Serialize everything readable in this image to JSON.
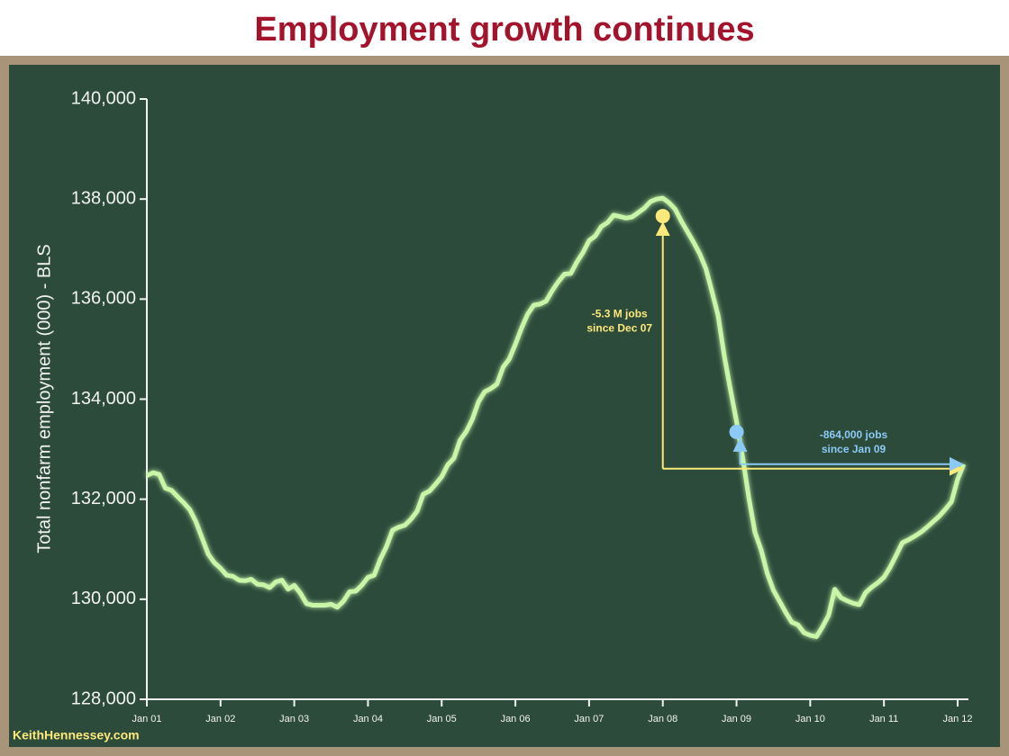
{
  "chart_data": {
    "type": "line",
    "title": "Employment growth continues",
    "y_label": "Total nonfarm employment (000) - BLS",
    "watermark": "KeithHennessey.com",
    "x": [
      "2001-01",
      "2001-02",
      "2001-03",
      "2001-04",
      "2001-05",
      "2001-06",
      "2001-07",
      "2001-08",
      "2001-09",
      "2001-10",
      "2001-11",
      "2001-12",
      "2002-01",
      "2002-02",
      "2002-03",
      "2002-04",
      "2002-05",
      "2002-06",
      "2002-07",
      "2002-08",
      "2002-09",
      "2002-10",
      "2002-11",
      "2002-12",
      "2003-01",
      "2003-02",
      "2003-03",
      "2003-04",
      "2003-05",
      "2003-06",
      "2003-07",
      "2003-08",
      "2003-09",
      "2003-10",
      "2003-11",
      "2003-12",
      "2004-01",
      "2004-02",
      "2004-03",
      "2004-04",
      "2004-05",
      "2004-06",
      "2004-07",
      "2004-08",
      "2004-09",
      "2004-10",
      "2004-11",
      "2004-12",
      "2005-01",
      "2005-02",
      "2005-03",
      "2005-04",
      "2005-05",
      "2005-06",
      "2005-07",
      "2005-08",
      "2005-09",
      "2005-10",
      "2005-11",
      "2005-12",
      "2006-01",
      "2006-02",
      "2006-03",
      "2006-04",
      "2006-05",
      "2006-06",
      "2006-07",
      "2006-08",
      "2006-09",
      "2006-10",
      "2006-11",
      "2006-12",
      "2007-01",
      "2007-02",
      "2007-03",
      "2007-04",
      "2007-05",
      "2007-06",
      "2007-07",
      "2007-08",
      "2007-09",
      "2007-10",
      "2007-11",
      "2007-12",
      "2008-01",
      "2008-02",
      "2008-03",
      "2008-04",
      "2008-05",
      "2008-06",
      "2008-07",
      "2008-08",
      "2008-09",
      "2008-10",
      "2008-11",
      "2008-12",
      "2009-01",
      "2009-02",
      "2009-03",
      "2009-04",
      "2009-05",
      "2009-06",
      "2009-07",
      "2009-08",
      "2009-09",
      "2009-10",
      "2009-11",
      "2009-12",
      "2010-01",
      "2010-02",
      "2010-03",
      "2010-04",
      "2010-05",
      "2010-06",
      "2010-07",
      "2010-08",
      "2010-09",
      "2010-10",
      "2010-11",
      "2010-12",
      "2011-01",
      "2011-02",
      "2011-03",
      "2011-04",
      "2011-05",
      "2011-06",
      "2011-07",
      "2011-08",
      "2011-09",
      "2011-10",
      "2011-11",
      "2011-12",
      "2012-01",
      "2012-02"
    ],
    "series": [
      {
        "name": "Total nonfarm employment",
        "color": "#c8f5a8",
        "values": [
          132470,
          132530,
          132500,
          132220,
          132180,
          132050,
          131930,
          131790,
          131550,
          131220,
          130900,
          130730,
          130620,
          130480,
          130460,
          130380,
          130370,
          130400,
          130300,
          130290,
          130230,
          130350,
          130380,
          130200,
          130280,
          130120,
          129910,
          129880,
          129880,
          129880,
          129900,
          129840,
          129960,
          130150,
          130160,
          130280,
          130440,
          130480,
          130800,
          131050,
          131380,
          131440,
          131480,
          131600,
          131760,
          132100,
          132160,
          132300,
          132450,
          132690,
          132820,
          133180,
          133350,
          133600,
          133950,
          134150,
          134210,
          134300,
          134640,
          134800,
          135100,
          135420,
          135700,
          135880,
          135900,
          135960,
          136170,
          136350,
          136500,
          136510,
          136740,
          136930,
          137170,
          137260,
          137450,
          137530,
          137680,
          137650,
          137620,
          137640,
          137730,
          137820,
          137950,
          138000,
          138020,
          137930,
          137800,
          137560,
          137350,
          137140,
          136910,
          136610,
          136150,
          135670,
          134870,
          134200,
          133560,
          132830,
          132030,
          131340,
          130990,
          130520,
          130180,
          129960,
          129740,
          129540,
          129490,
          129330,
          129280,
          129250,
          129450,
          129680,
          130200,
          130030,
          129970,
          129920,
          129890,
          130130,
          130240,
          130330,
          130440,
          130640,
          130880,
          131130,
          131190,
          131260,
          131340,
          131440,
          131550,
          131660,
          131800,
          131950,
          132400,
          132700
        ]
      }
    ],
    "markers": [
      {
        "x": "2008-01",
        "value": 137660,
        "color": "#fde97a",
        "lines": [
          "-5.3 M jobs",
          "since Dec 07"
        ]
      },
      {
        "x": "2009-01",
        "value": 133345,
        "color": "#8ccaf5",
        "lines": [
          "-864,000 jobs",
          "since Jan 09"
        ]
      }
    ],
    "ylim": [
      128000,
      140000
    ],
    "yticks": [
      {
        "value": 128000,
        "label": "128,000"
      },
      {
        "value": 130000,
        "label": "130,000"
      },
      {
        "value": 132000,
        "label": "132,000"
      },
      {
        "value": 134000,
        "label": "134,000"
      },
      {
        "value": 136000,
        "label": "136,000"
      },
      {
        "value": 138000,
        "label": "138,000"
      },
      {
        "value": 140000,
        "label": "140,000"
      }
    ],
    "xticks": [
      {
        "value": "2001-01",
        "label": "Jan 01"
      },
      {
        "value": "2002-01",
        "label": "Jan 02"
      },
      {
        "value": "2003-01",
        "label": "Jan 03"
      },
      {
        "value": "2004-01",
        "label": "Jan 04"
      },
      {
        "value": "2005-01",
        "label": "Jan 05"
      },
      {
        "value": "2006-01",
        "label": "Jan 06"
      },
      {
        "value": "2007-01",
        "label": "Jan 07"
      },
      {
        "value": "2008-01",
        "label": "Jan 08"
      },
      {
        "value": "2009-01",
        "label": "Jan 09"
      },
      {
        "value": "2010-01",
        "label": "Jan 10"
      },
      {
        "value": "2011-01",
        "label": "Jan 11"
      },
      {
        "value": "2012-01",
        "label": "Jan 12"
      }
    ]
  }
}
